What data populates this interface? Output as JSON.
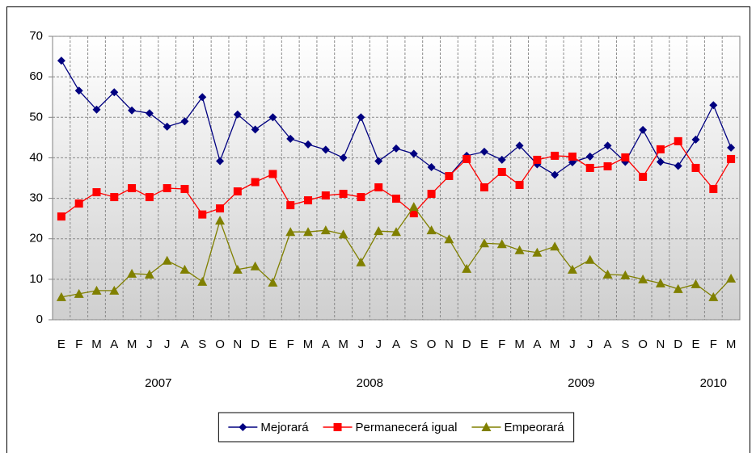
{
  "chart_data": {
    "type": "line",
    "categories": [
      "E",
      "F",
      "M",
      "A",
      "M",
      "J",
      "J",
      "A",
      "S",
      "O",
      "N",
      "D",
      "E",
      "F",
      "M",
      "A",
      "M",
      "J",
      "J",
      "A",
      "S",
      "O",
      "N",
      "D",
      "E",
      "F",
      "M",
      "A",
      "M",
      "J",
      "J",
      "A",
      "S",
      "O",
      "N",
      "D",
      "E",
      "F",
      "M"
    ],
    "years": [
      "2007",
      "2008",
      "2009",
      "2010"
    ],
    "ylim": [
      0,
      70
    ],
    "yticks": [
      0,
      10,
      20,
      30,
      40,
      50,
      60,
      70
    ],
    "grid": true,
    "legend": "bottom",
    "series": [
      {
        "name": "Mejorará",
        "color": "#000080",
        "marker": "diamond",
        "values": [
          64,
          56.6,
          51.9,
          56.2,
          51.7,
          51,
          47.7,
          49,
          55,
          39.2,
          50.7,
          47,
          50,
          44.7,
          43.3,
          42,
          40,
          50,
          39.2,
          42.3,
          41,
          37.7,
          35.5,
          40.5,
          41.5,
          39.5,
          43,
          38.4,
          35.8,
          38.9,
          40.3,
          43,
          39,
          46.9,
          39,
          38,
          44.5,
          53,
          42.5
        ]
      },
      {
        "name": "Permanecerá igual",
        "color": "#ff0000",
        "marker": "square",
        "values": [
          25.5,
          28.7,
          31.5,
          30.3,
          32.5,
          30.3,
          32.5,
          32.3,
          26,
          27.5,
          31.7,
          34,
          36,
          28.3,
          29.5,
          30.7,
          31.1,
          30.3,
          32.7,
          29.9,
          26.3,
          31.1,
          35.5,
          39.7,
          32.7,
          36.5,
          33.3,
          39.5,
          40.5,
          40.3,
          37.5,
          37.9,
          40.1,
          35.3,
          42.1,
          44.1,
          37.5,
          32.3,
          39.7
        ]
      },
      {
        "name": "Empeorará",
        "color": "#808000",
        "marker": "triangle",
        "values": [
          5.6,
          6.4,
          7.2,
          7.2,
          11.4,
          11.2,
          14.6,
          12.4,
          9.4,
          24.5,
          12.4,
          13.2,
          9.2,
          21.7,
          21.7,
          22.1,
          21.1,
          14.2,
          21.9,
          21.7,
          27.9,
          22.1,
          19.9,
          12.6,
          18.9,
          18.7,
          17.2,
          16.6,
          18.1,
          12.4,
          14.8,
          11.2,
          11,
          10,
          9,
          7.6,
          8.8,
          5.6,
          10.2
        ]
      }
    ]
  }
}
